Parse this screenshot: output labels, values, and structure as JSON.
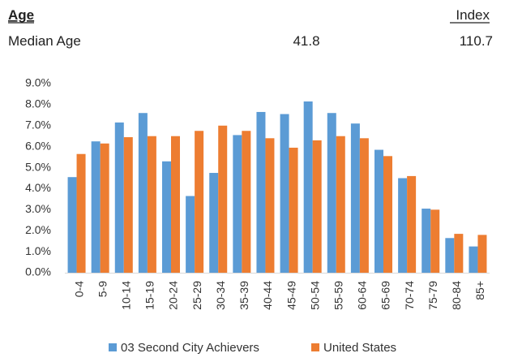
{
  "header": {
    "title": "Age",
    "index_label": "Index"
  },
  "rows": [
    {
      "label": "Median Age",
      "value": "41.8",
      "index": "110.7"
    }
  ],
  "chart_data": {
    "type": "bar",
    "categories": [
      "0-4",
      "5-9",
      "10-14",
      "15-19",
      "20-24",
      "25-29",
      "30-34",
      "35-39",
      "40-44",
      "45-49",
      "50-54",
      "55-59",
      "60-64",
      "65-69",
      "70-74",
      "75-79",
      "80-84",
      "85+"
    ],
    "series": [
      {
        "name": "03 Second City Achievers",
        "color": "#5b9bd5",
        "values": [
          4.55,
          6.25,
          7.15,
          7.6,
          5.3,
          3.65,
          4.75,
          6.55,
          7.65,
          7.55,
          8.15,
          7.6,
          7.1,
          5.85,
          4.5,
          3.05,
          1.65,
          1.25
        ]
      },
      {
        "name": "United States",
        "color": "#ed7d31",
        "values": [
          5.65,
          6.15,
          6.45,
          6.5,
          6.5,
          6.75,
          7.0,
          6.75,
          6.4,
          5.95,
          6.3,
          6.5,
          6.4,
          5.55,
          4.6,
          3.0,
          1.85,
          1.8
        ]
      }
    ],
    "ylim": [
      0,
      9
    ],
    "yticks": [
      {
        "value": 0,
        "label": "0.0%"
      },
      {
        "value": 1,
        "label": "1.0%"
      },
      {
        "value": 2,
        "label": "2.0%"
      },
      {
        "value": 3,
        "label": "3.0%"
      },
      {
        "value": 4,
        "label": "4.0%"
      },
      {
        "value": 5,
        "label": "5.0%"
      },
      {
        "value": 6,
        "label": "6.0%"
      },
      {
        "value": 7,
        "label": "7.0%"
      },
      {
        "value": 8,
        "label": "8.0%"
      },
      {
        "value": 9,
        "label": "9.0%"
      }
    ],
    "grid": false
  }
}
